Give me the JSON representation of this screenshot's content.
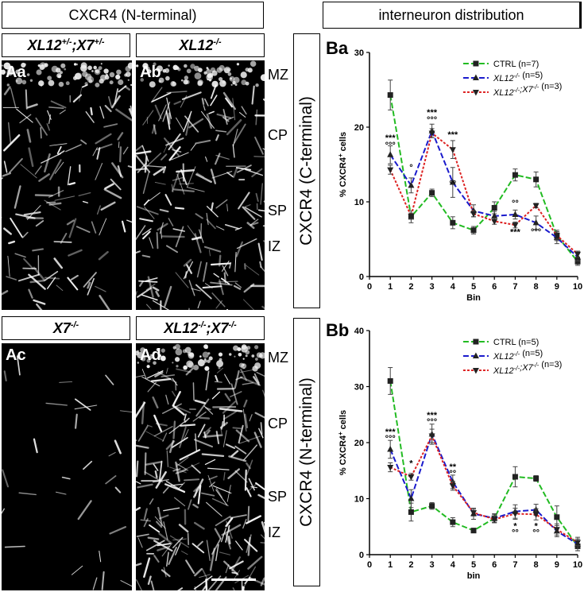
{
  "headers": {
    "left": "CXCR4 (N-terminal)",
    "right": "interneuron distribution"
  },
  "genotypes": {
    "aa": "XL12+/-;X7+/-",
    "ab": "XL12-/-",
    "ac": "X7-/-",
    "ad": "XL12-/-;X7-/-"
  },
  "panel_letters": {
    "aa": "Aa",
    "ab": "Ab",
    "ac": "Ac",
    "ad": "Ad",
    "ba": "Ba",
    "bb": "Bb"
  },
  "layers": {
    "mz": "MZ",
    "cp": "CP",
    "sp": "SP",
    "iz": "IZ"
  },
  "vertical_labels": {
    "top": "CXCR4 (C-terminal)",
    "bottom": "CXCR4 (N-terminal)"
  },
  "colors": {
    "ctrl": "#22bb22",
    "xl12": "#1a1acc",
    "dko": "#dd2222"
  },
  "chart_data": [
    {
      "type": "line",
      "panel": "Ba",
      "xlabel": "Bin",
      "ylabel": "% CXCR4+ cells",
      "x": [
        1,
        2,
        3,
        4,
        5,
        6,
        7,
        8,
        9,
        10
      ],
      "xlim": [
        0,
        10
      ],
      "ylim": [
        0,
        30
      ],
      "yticks": [
        0,
        10,
        20,
        30
      ],
      "legend_position": "top-right",
      "series": [
        {
          "name": "CTRL (n=7)",
          "color": "#22bb22",
          "marker": "square",
          "values": [
            24.3,
            8.0,
            11.2,
            7.2,
            6.2,
            9.2,
            13.6,
            13.0,
            5.5,
            2.0
          ],
          "errors": [
            2.0,
            0.8,
            0.5,
            0.8,
            0.5,
            0.8,
            0.8,
            1.0,
            0.7,
            0.5
          ]
        },
        {
          "name": "XL12-/- (n=5)",
          "color": "#1a1acc",
          "marker": "triangle-up",
          "values": [
            16.3,
            12.2,
            19.5,
            12.6,
            8.8,
            8.1,
            8.3,
            7.2,
            5.2,
            2.6
          ],
          "errors": [
            1.2,
            1.0,
            0.9,
            2.0,
            0.8,
            0.6,
            0.6,
            0.9,
            0.8,
            0.5
          ]
        },
        {
          "name": "XL12-/-;X7-/- (n=3)",
          "color": "#dd2222",
          "marker": "triangle-down",
          "values": [
            14.3,
            8.1,
            19.2,
            17.0,
            8.4,
            7.4,
            6.9,
            9.5,
            5.5,
            3.0
          ],
          "errors": [
            0.6,
            0.4,
            0.6,
            1.2,
            0.4,
            0.4,
            0.4,
            0.3,
            0.5,
            0.4
          ]
        }
      ],
      "annotations": [
        {
          "x": 1,
          "y": 18.2,
          "text": "***"
        },
        {
          "x": 1,
          "y": 17.2,
          "text": "°°°"
        },
        {
          "x": 2,
          "y": 14.2,
          "text": "°"
        },
        {
          "x": 3,
          "y": 21.6,
          "text": "***"
        },
        {
          "x": 3,
          "y": 20.6,
          "text": "°°°"
        },
        {
          "x": 4,
          "y": 18.6,
          "text": "***"
        },
        {
          "x": 4,
          "y": 12.0,
          "text": "°°"
        },
        {
          "x": 7,
          "y": 9.4,
          "text": "°°"
        },
        {
          "x": 7,
          "y": 5.6,
          "text": "***"
        },
        {
          "x": 8,
          "y": 5.6,
          "text": "°°°"
        }
      ]
    },
    {
      "type": "line",
      "panel": "Bb",
      "xlabel": "bin",
      "ylabel": "% CXCR4+ cells",
      "x": [
        1,
        2,
        3,
        4,
        5,
        6,
        7,
        8,
        9,
        10
      ],
      "xlim": [
        0,
        10
      ],
      "ylim": [
        0,
        40
      ],
      "yticks": [
        0,
        10,
        20,
        30,
        40
      ],
      "legend_position": "top-right",
      "series": [
        {
          "name": "CTRL (n=5)",
          "color": "#22bb22",
          "marker": "square",
          "values": [
            31.0,
            7.6,
            8.7,
            5.8,
            4.3,
            6.5,
            13.9,
            13.6,
            6.7,
            1.5
          ],
          "errors": [
            2.4,
            1.6,
            0.6,
            0.8,
            0.4,
            0.7,
            1.8,
            0.5,
            2.0,
            0.8
          ]
        },
        {
          "name": "XL12-/- (n=5)",
          "color": "#1a1acc",
          "marker": "triangle-up",
          "values": [
            18.8,
            10.0,
            21.5,
            13.0,
            7.3,
            6.5,
            7.7,
            8.0,
            4.2,
            1.9
          ],
          "errors": [
            1.6,
            1.6,
            1.8,
            1.2,
            1.0,
            0.8,
            1.2,
            1.0,
            1.0,
            1.2
          ]
        },
        {
          "name": "XL12-/-;X7-/- (n=3)",
          "color": "#dd2222",
          "marker": "triangle-down",
          "values": [
            15.6,
            13.9,
            21.2,
            12.3,
            7.5,
            6.3,
            7.3,
            7.2,
            4.5,
            2.2
          ],
          "errors": [
            0.8,
            0.6,
            1.2,
            0.8,
            0.6,
            0.6,
            1.0,
            1.0,
            1.0,
            0.6
          ]
        }
      ],
      "annotations": [
        {
          "x": 1,
          "y": 21.4,
          "text": "***"
        },
        {
          "x": 1,
          "y": 20.2,
          "text": "°°°"
        },
        {
          "x": 2,
          "y": 15.8,
          "text": "*"
        },
        {
          "x": 3,
          "y": 24.4,
          "text": "***"
        },
        {
          "x": 3,
          "y": 23.2,
          "text": "°°°"
        },
        {
          "x": 4,
          "y": 15.2,
          "text": "**"
        },
        {
          "x": 4,
          "y": 14.0,
          "text": "°°"
        },
        {
          "x": 7,
          "y": 4.6,
          "text": "*"
        },
        {
          "x": 7,
          "y": 3.4,
          "text": "°°"
        },
        {
          "x": 8,
          "y": 4.6,
          "text": "*"
        },
        {
          "x": 8,
          "y": 3.4,
          "text": "°°"
        }
      ]
    }
  ]
}
